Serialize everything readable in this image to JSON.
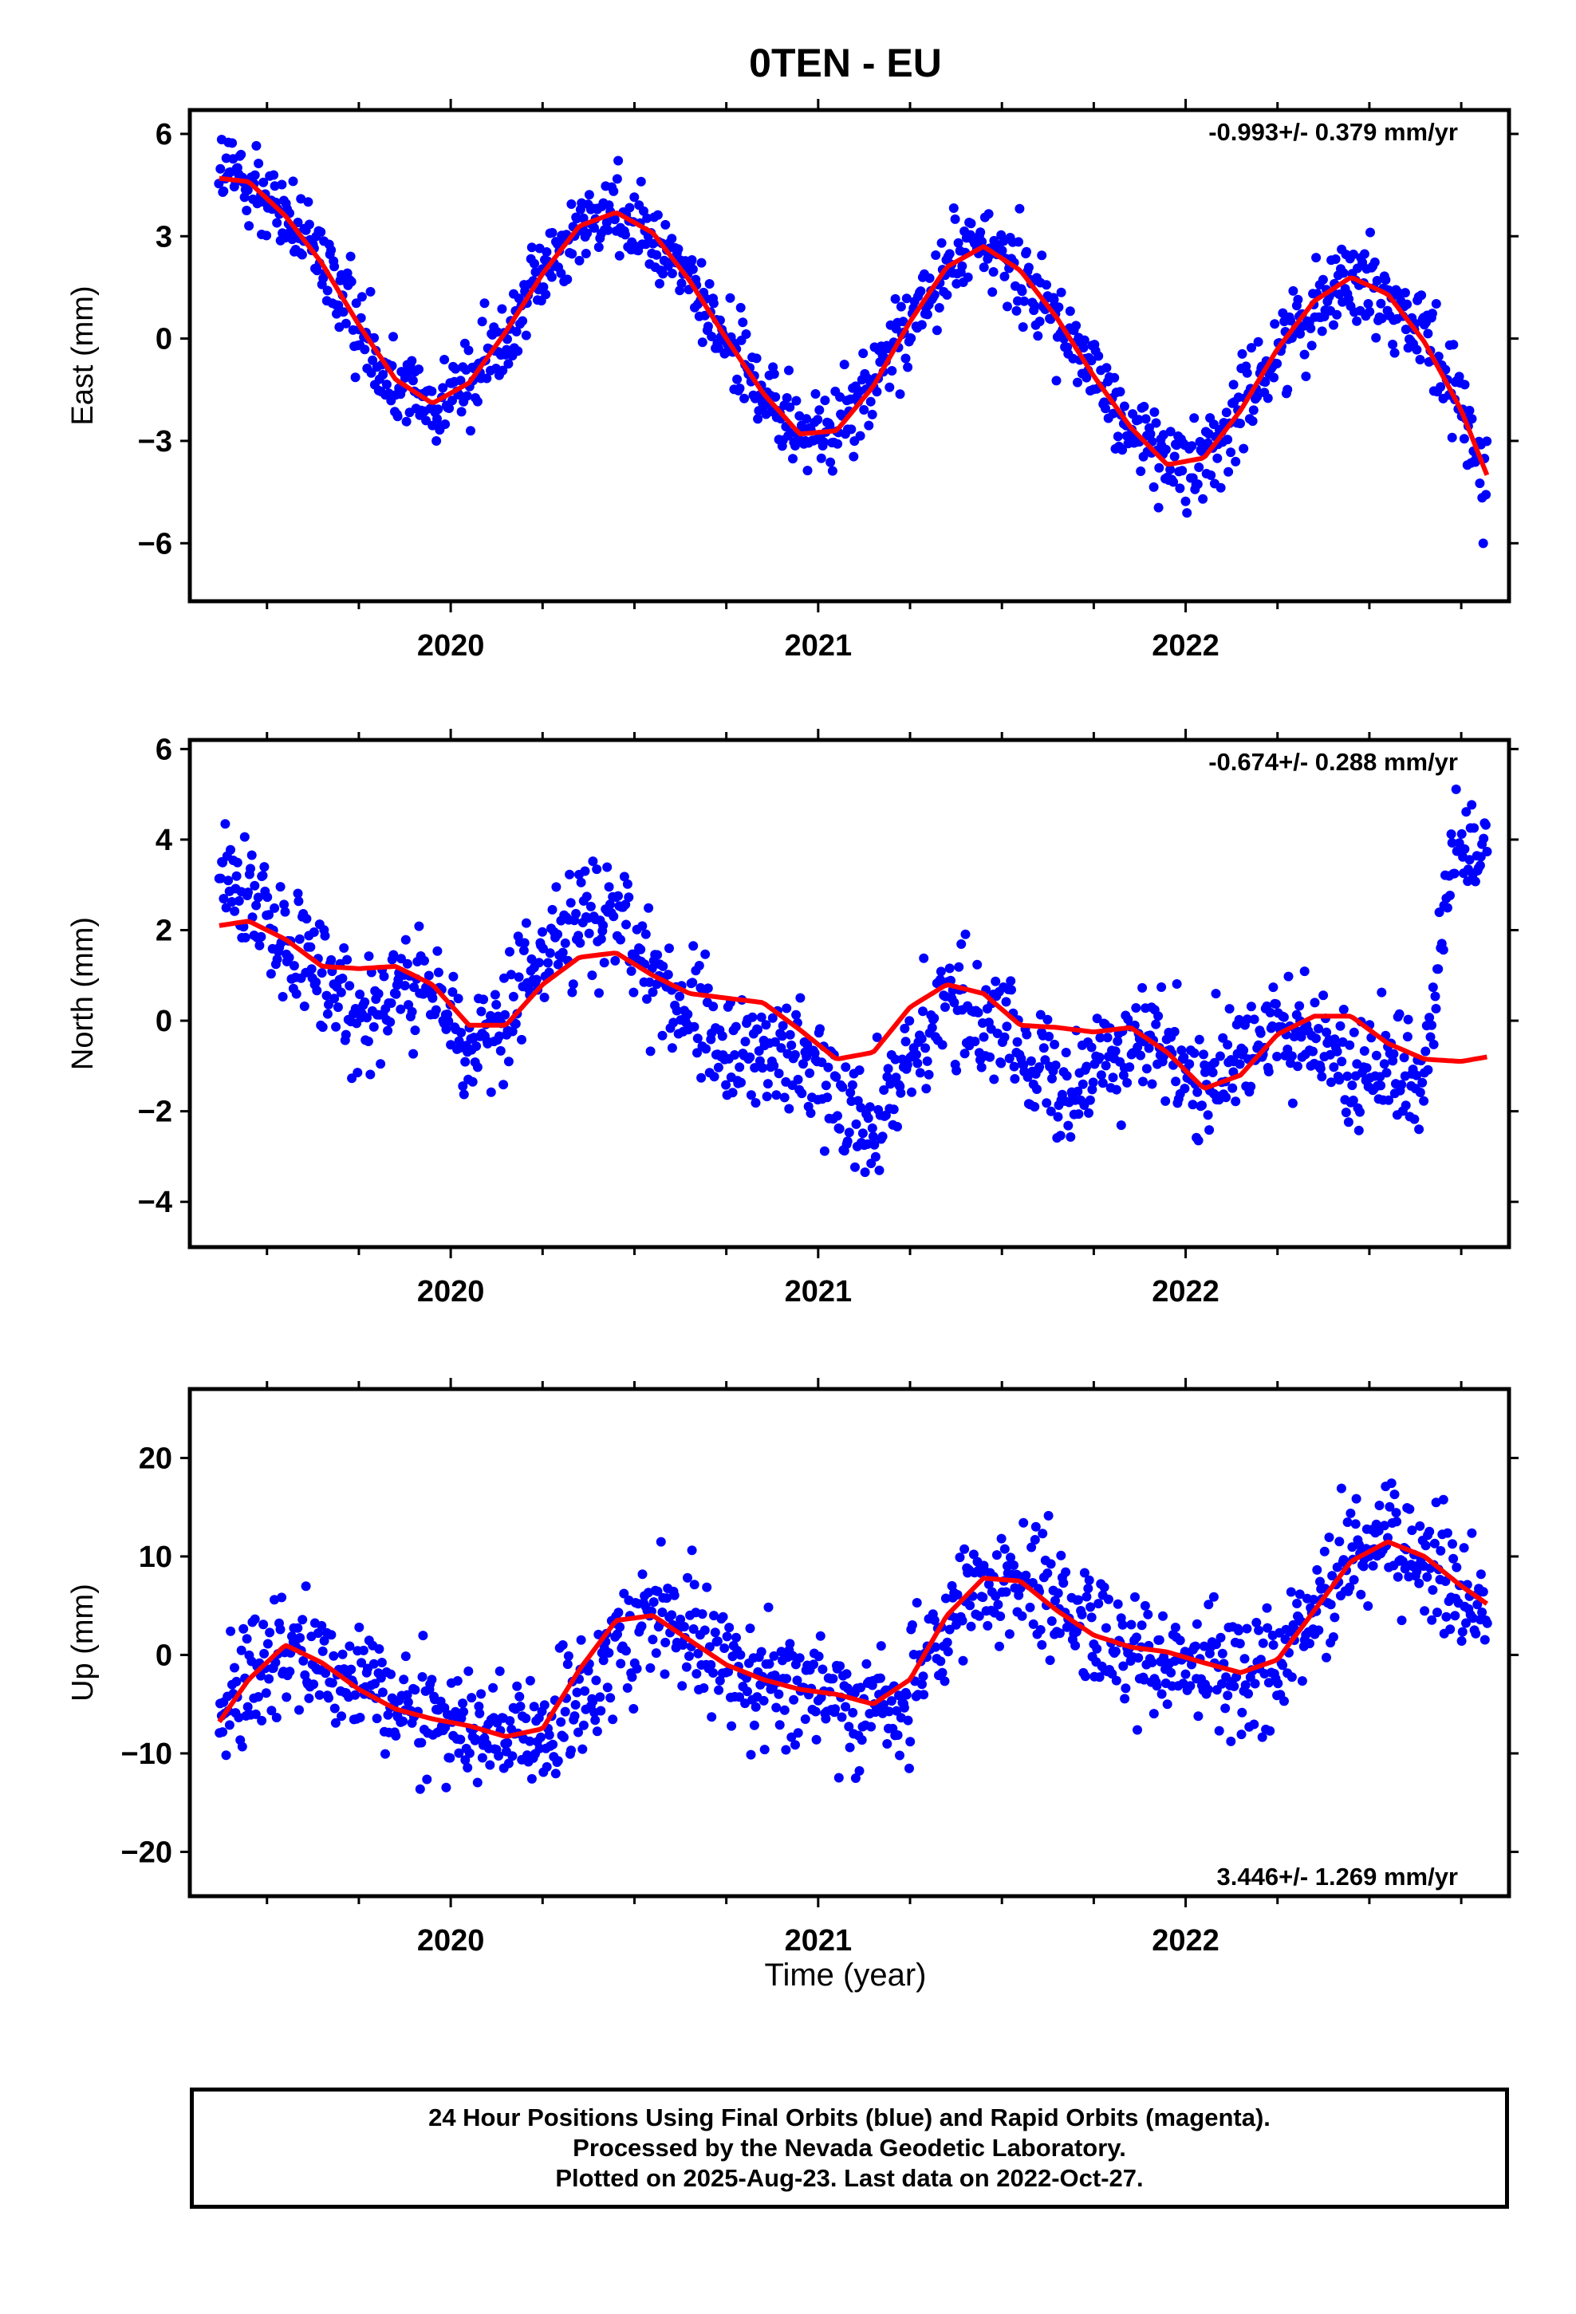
{
  "title": "0TEN - EU",
  "colors": {
    "points": "#0000ff",
    "fit": "#ff0000",
    "frame": "#000000"
  },
  "footer": {
    "line1": "24 Hour Positions Using Final Orbits (blue) and Rapid Orbits (magenta).",
    "line2": "Processed by the Nevada Geodetic Laboratory.",
    "line3": "Plotted on 2025-Aug-23. Last data on 2022-Oct-27."
  },
  "chart_data": [
    {
      "type": "scatter",
      "component": "East",
      "ylabel": "East (mm)",
      "rate_label": "-0.993+/- 0.379 mm/yr",
      "rate_position": "top-right",
      "xlim": [
        2019.29,
        2022.88
      ],
      "ylim": [
        -7.7,
        6.7
      ],
      "yticks": [
        -6,
        -3,
        0,
        3,
        6
      ],
      "yticklabels": [
        "−6",
        "−3",
        "0",
        "3",
        "6"
      ],
      "xticks": [
        2020,
        2021,
        2022
      ],
      "xticklabels": [
        "2020",
        "2021",
        "2022"
      ],
      "grid": false,
      "series": [
        {
          "kind": "points",
          "color": "#0000ff",
          "x": [
            2019.37,
            2019.45,
            2019.55,
            2019.65,
            2019.75,
            2019.85,
            2019.95,
            2020.05,
            2020.15,
            2020.25,
            2020.35,
            2020.45,
            2020.55,
            2020.65,
            2020.75,
            2020.85,
            2020.95,
            2021.05,
            2021.15,
            2021.25,
            2021.35,
            2021.45,
            2021.55,
            2021.65,
            2021.75,
            2021.85,
            2021.95,
            2022.05,
            2022.15,
            2022.25,
            2022.35,
            2022.45,
            2022.55,
            2022.65,
            2022.75,
            2022.82
          ],
          "y": [
            4.8,
            4.6,
            3.6,
            2.2,
            0.4,
            -1.2,
            -1.9,
            -1.3,
            0.2,
            1.9,
            3.3,
            3.7,
            3.1,
            1.7,
            0.0,
            -1.6,
            -2.8,
            -2.7,
            -1.4,
            0.5,
            2.1,
            2.7,
            2.0,
            0.6,
            -1.1,
            -2.6,
            -3.7,
            -3.5,
            -2.1,
            -0.3,
            1.1,
            1.8,
            1.3,
            -0.1,
            -2.1,
            -4.0
          ],
          "spread": 0.9
        },
        {
          "kind": "line",
          "color": "#ff0000",
          "x": [
            2019.37,
            2019.45,
            2019.55,
            2019.65,
            2019.75,
            2019.85,
            2019.95,
            2020.05,
            2020.15,
            2020.25,
            2020.35,
            2020.45,
            2020.55,
            2020.65,
            2020.75,
            2020.85,
            2020.95,
            2021.05,
            2021.15,
            2021.25,
            2021.35,
            2021.45,
            2021.55,
            2021.65,
            2021.75,
            2021.85,
            2021.95,
            2022.05,
            2022.15,
            2022.25,
            2022.35,
            2022.45,
            2022.55,
            2022.65,
            2022.75,
            2022.82
          ],
          "y": [
            4.7,
            4.6,
            3.6,
            2.2,
            0.4,
            -1.2,
            -1.9,
            -1.3,
            0.2,
            1.9,
            3.3,
            3.7,
            3.1,
            1.7,
            0.0,
            -1.6,
            -2.8,
            -2.7,
            -1.4,
            0.5,
            2.1,
            2.7,
            2.0,
            0.6,
            -1.1,
            -2.6,
            -3.7,
            -3.5,
            -2.1,
            -0.3,
            1.1,
            1.8,
            1.3,
            -0.1,
            -2.1,
            -4.0
          ]
        }
      ]
    },
    {
      "type": "scatter",
      "component": "North",
      "ylabel": "North (mm)",
      "rate_label": "-0.674+/- 0.288 mm/yr",
      "rate_position": "top-right",
      "xlim": [
        2019.29,
        2022.88
      ],
      "ylim": [
        -5.0,
        6.2
      ],
      "yticks": [
        -4,
        -2,
        0,
        2,
        4,
        6
      ],
      "yticklabels": [
        "−4",
        "−2",
        "0",
        "2",
        "4",
        "6"
      ],
      "xticks": [
        2020,
        2021,
        2022
      ],
      "xticklabels": [
        "2020",
        "2021",
        "2022"
      ],
      "grid": false,
      "series": [
        {
          "kind": "points",
          "color": "#0000ff",
          "x": [
            2019.37,
            2019.45,
            2019.55,
            2019.65,
            2019.75,
            2019.85,
            2019.95,
            2020.05,
            2020.15,
            2020.25,
            2020.35,
            2020.45,
            2020.55,
            2020.65,
            2020.75,
            2020.85,
            2020.95,
            2021.05,
            2021.15,
            2021.25,
            2021.35,
            2021.45,
            2021.55,
            2021.65,
            2021.75,
            2021.85,
            2021.95,
            2022.05,
            2022.15,
            2022.25,
            2022.35,
            2022.45,
            2022.55,
            2022.65,
            2022.72,
            2022.78,
            2022.82
          ],
          "y": [
            3.2,
            2.6,
            1.8,
            0.6,
            0.3,
            0.6,
            0.5,
            -0.3,
            -0.1,
            1.6,
            2.4,
            2.0,
            1.1,
            0.1,
            -0.6,
            -0.8,
            -0.8,
            -1.6,
            -2.1,
            -0.8,
            0.3,
            0.2,
            -0.5,
            -1.2,
            -1.2,
            -0.4,
            -0.7,
            -1.8,
            -0.9,
            -0.2,
            -0.5,
            -1.0,
            -0.9,
            -1.2,
            3.5,
            3.9,
            4.0
          ],
          "spread": 0.9
        },
        {
          "kind": "line",
          "color": "#ff0000",
          "x": [
            2019.37,
            2019.45,
            2019.55,
            2019.65,
            2019.75,
            2019.85,
            2019.95,
            2020.05,
            2020.15,
            2020.25,
            2020.35,
            2020.45,
            2020.55,
            2020.65,
            2020.75,
            2020.85,
            2020.95,
            2021.05,
            2021.15,
            2021.25,
            2021.35,
            2021.45,
            2021.55,
            2021.65,
            2021.75,
            2021.85,
            2021.95,
            2022.05,
            2022.15,
            2022.25,
            2022.35,
            2022.45,
            2022.55,
            2022.65,
            2022.75,
            2022.82
          ],
          "y": [
            2.1,
            2.2,
            1.8,
            1.2,
            1.15,
            1.2,
            0.8,
            -0.1,
            -0.1,
            0.8,
            1.4,
            1.5,
            1.0,
            0.6,
            0.5,
            0.4,
            -0.2,
            -0.85,
            -0.7,
            0.3,
            0.8,
            0.6,
            -0.1,
            -0.15,
            -0.25,
            -0.15,
            -0.7,
            -1.5,
            -1.2,
            -0.3,
            0.1,
            0.1,
            -0.5,
            -0.85,
            -0.9,
            -0.8
          ]
        }
      ]
    },
    {
      "type": "scatter",
      "component": "Up",
      "ylabel": "Up (mm)",
      "rate_label": "3.446+/- 1.269 mm/yr",
      "rate_position": "bottom-right",
      "xlim": [
        2019.29,
        2022.88
      ],
      "ylim": [
        -24.5,
        27
      ],
      "yticks": [
        -20,
        -10,
        0,
        10,
        20
      ],
      "yticklabels": [
        "−20",
        "−10",
        "0",
        "10",
        "20"
      ],
      "xticks": [
        2020,
        2021,
        2022
      ],
      "xticklabels": [
        "2020",
        "2021",
        "2022"
      ],
      "xlabel": "Time (year)",
      "grid": false,
      "series": [
        {
          "kind": "points",
          "color": "#0000ff",
          "x": [
            2019.37,
            2019.45,
            2019.55,
            2019.65,
            2019.75,
            2019.85,
            2019.95,
            2020.05,
            2020.15,
            2020.25,
            2020.35,
            2020.45,
            2020.55,
            2020.65,
            2020.75,
            2020.85,
            2020.95,
            2021.05,
            2021.15,
            2021.25,
            2021.35,
            2021.45,
            2021.55,
            2021.65,
            2021.75,
            2021.85,
            2021.95,
            2022.05,
            2022.15,
            2022.25,
            2022.35,
            2022.45,
            2022.55,
            2022.65,
            2022.75,
            2022.82
          ],
          "y": [
            -6,
            -2,
            1,
            -0.5,
            -3,
            -5,
            -6.5,
            -7,
            -8,
            -9,
            -5,
            2,
            4,
            2,
            -0.5,
            -2.5,
            -3.5,
            -4,
            -5,
            -4,
            2,
            7,
            8,
            6,
            2,
            0.5,
            -0.5,
            -1,
            -2,
            -1.5,
            5,
            10,
            12,
            9,
            6,
            5
          ],
          "spread": 4.2
        },
        {
          "kind": "line",
          "color": "#ff0000",
          "x": [
            2019.37,
            2019.45,
            2019.55,
            2019.65,
            2019.75,
            2019.85,
            2019.95,
            2020.05,
            2020.15,
            2020.25,
            2020.35,
            2020.45,
            2020.55,
            2020.65,
            2020.75,
            2020.85,
            2020.95,
            2021.05,
            2021.15,
            2021.25,
            2021.35,
            2021.45,
            2021.55,
            2021.65,
            2021.75,
            2021.85,
            2021.95,
            2022.05,
            2022.15,
            2022.25,
            2022.35,
            2022.45,
            2022.55,
            2022.65,
            2022.75,
            2022.82
          ],
          "y": [
            -6.8,
            -2.5,
            1.0,
            -0.8,
            -3.5,
            -5.5,
            -6.5,
            -7.2,
            -8.3,
            -7.5,
            -1.5,
            3.5,
            4.0,
            1.5,
            -1.0,
            -2.5,
            -3.5,
            -4.0,
            -5.0,
            -2.5,
            4.0,
            7.8,
            7.5,
            4.5,
            2.0,
            0.8,
            0.3,
            -0.8,
            -1.8,
            -0.5,
            4.5,
            9.5,
            11.5,
            10.0,
            7.0,
            5.2
          ]
        }
      ]
    }
  ]
}
